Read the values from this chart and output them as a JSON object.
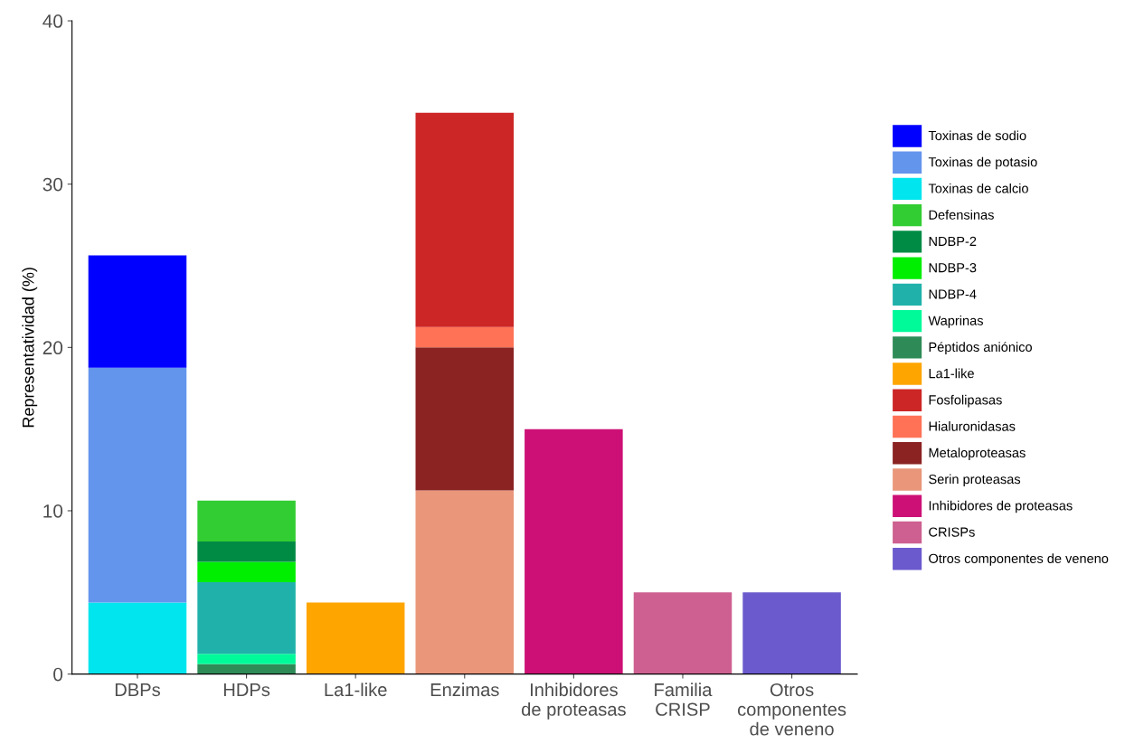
{
  "chart_data": {
    "type": "bar",
    "stacked": true,
    "ylabel": "Representatividad (%)",
    "categories": [
      "DBPs",
      "HDPs",
      "La1-like",
      "Enzimas",
      "Inhibidores\nde proteasas",
      "Familia\nCRISP",
      "Otros\ncomponentes\nde veneno"
    ],
    "ylim": [
      0,
      40
    ],
    "yticks": [
      0,
      10,
      20,
      30,
      40
    ],
    "grid": false,
    "legend": "right",
    "series": [
      {
        "name": "Otros componentes de veneno",
        "color": "#6a5acd",
        "values": [
          null,
          null,
          null,
          null,
          null,
          null,
          5
        ]
      },
      {
        "name": "CRISPs",
        "color": "#cd6090",
        "values": [
          null,
          null,
          null,
          null,
          null,
          5,
          null
        ]
      },
      {
        "name": "Inhibidores de proteasas",
        "color": "#cd1076",
        "values": [
          null,
          null,
          null,
          null,
          15,
          null,
          null
        ]
      },
      {
        "name": "Serin proteasas",
        "color": "#e9967a",
        "values": [
          null,
          null,
          null,
          11.25,
          null,
          null,
          null
        ]
      },
      {
        "name": "Metaloproteasas",
        "color": "#8b2323",
        "values": [
          null,
          null,
          null,
          8.75,
          null,
          null,
          null
        ]
      },
      {
        "name": "Hialuronidasas",
        "color": "#ff7256",
        "values": [
          null,
          null,
          null,
          1.25,
          null,
          null,
          null
        ]
      },
      {
        "name": "Fosfolipasas",
        "color": "#cd2626",
        "values": [
          null,
          null,
          null,
          13.12,
          null,
          null,
          null
        ]
      },
      {
        "name": "La1-like",
        "color": "#ffa500",
        "values": [
          null,
          null,
          4.38,
          null,
          null,
          null,
          null
        ]
      },
      {
        "name": "Péptidos aniónico",
        "color": "#2e8b57",
        "values": [
          null,
          0.62,
          null,
          null,
          null,
          null,
          null
        ]
      },
      {
        "name": "Waprinas",
        "color": "#00fa9a",
        "values": [
          null,
          0.62,
          null,
          null,
          null,
          null,
          null
        ]
      },
      {
        "name": "NDBP-4",
        "color": "#20b2aa",
        "values": [
          null,
          4.38,
          null,
          null,
          null,
          null,
          null
        ]
      },
      {
        "name": "NDBP-3",
        "color": "#00ee00",
        "values": [
          null,
          1.25,
          null,
          null,
          null,
          null,
          null
        ]
      },
      {
        "name": "NDBP-2",
        "color": "#008b45",
        "values": [
          null,
          1.25,
          null,
          null,
          null,
          null,
          null
        ]
      },
      {
        "name": "Defensinas",
        "color": "#32cd32",
        "values": [
          null,
          2.5,
          null,
          null,
          null,
          null,
          null
        ]
      },
      {
        "name": "Toxinas de calcio",
        "color": "#00e5ee",
        "values": [
          4.38,
          null,
          null,
          null,
          null,
          null,
          null
        ]
      },
      {
        "name": "Toxinas de potasio",
        "color": "#6495ed",
        "values": [
          14.38,
          null,
          null,
          null,
          null,
          null,
          null
        ]
      },
      {
        "name": "Toxinas de sodio",
        "color": "#0000ff",
        "values": [
          6.88,
          null,
          null,
          null,
          null,
          null,
          null
        ]
      }
    ]
  }
}
